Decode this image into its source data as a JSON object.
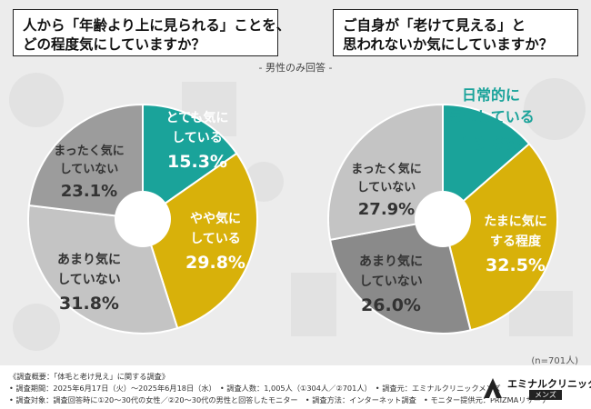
{
  "subtitle": "- 男性のみ回答 -",
  "sample_note": "(n=701人)",
  "footer": {
    "line1": "《調査概要：「体毛と老け見え」に関する調査》",
    "line2": "• 調査期間：2025年6月17日（火）〜2025年6月18日（水）　• 調査人数：1,005人（①304人／②701人）　• 調査元：エミナルクリニックメンズ",
    "line3": "• 調査対象：調査回答時に①20〜30代の女性／②20〜30代の男性と回答したモニター　• 調査方法：インターネット調査　• モニター提供元：PRIZMAリサーチ"
  },
  "logo": {
    "name": "エミナルクリニック",
    "sub": "メンズ"
  },
  "colors": {
    "teal": "#1aa39a",
    "mustard": "#d8b10a",
    "mid_gray": "#9c9c9c",
    "light_gray": "#c4c4c4",
    "dark_gray": "#8a8a8a"
  },
  "chart_data": [
    {
      "type": "pie",
      "title_lines": [
        "人から「年齢より上に見られる」ことを、",
        "どの程度気にしていますか？"
      ],
      "slices": [
        {
          "label_lines": [
            "とても気に",
            "している"
          ],
          "value": 15.3,
          "pct": "15.3%",
          "color": "#1aa39a",
          "text_color": "#ffffff"
        },
        {
          "label_lines": [
            "やや気に",
            "している"
          ],
          "value": 29.8,
          "pct": "29.8%",
          "color": "#d8b10a",
          "text_color": "#ffffff"
        },
        {
          "label_lines": [
            "あまり気に",
            "していない"
          ],
          "value": 31.8,
          "pct": "31.8%",
          "color": "#c4c4c4",
          "text_color": "#333333"
        },
        {
          "label_lines": [
            "まったく気に",
            "していない"
          ],
          "value": 23.1,
          "pct": "23.1%",
          "color": "#9c9c9c",
          "text_color": "#333333"
        }
      ]
    },
    {
      "type": "pie",
      "title_lines": [
        "ご自身が「老けて見える」と",
        "思われないか気にしていますか？"
      ],
      "slices": [
        {
          "label_lines": [
            "日常的に",
            "気にしている"
          ],
          "value": 13.6,
          "pct": "13.6%",
          "color": "#1aa39a",
          "text_color": "#1aa39a"
        },
        {
          "label_lines": [
            "たまに気に",
            "する程度"
          ],
          "value": 32.5,
          "pct": "32.5%",
          "color": "#d8b10a",
          "text_color": "#ffffff"
        },
        {
          "label_lines": [
            "あまり気に",
            "していない"
          ],
          "value": 26.0,
          "pct": "26.0%",
          "color": "#8a8a8a",
          "text_color": "#333333"
        },
        {
          "label_lines": [
            "まったく気に",
            "していない"
          ],
          "value": 27.9,
          "pct": "27.9%",
          "color": "#c4c4c4",
          "text_color": "#333333"
        }
      ]
    }
  ]
}
